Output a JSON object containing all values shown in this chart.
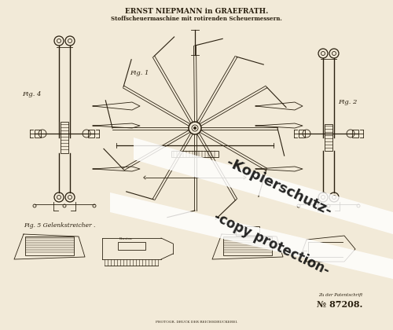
{
  "bg_color": "#f2ead8",
  "line_color": "#2a2010",
  "title1": "ERNST NIEPMANN in GRAEFRATH.",
  "title2": "Stoffscheuermaschine mit rotirenden Scheuermessern.",
  "patent_label": "Zu der Patentschrift",
  "patent_number": "№ 87208.",
  "watermark1": "-Kopierschutz-",
  "watermark2": "-copy protection-",
  "fig1_label": "Fig. 1",
  "fig2_label": "Fig. 2",
  "fig4_label": "Fig. 4",
  "fig5_label": "Fig. 5 Gelenkstreicher .",
  "bottom_text": "PHOTOGR. DRUCK DER REICHSDRUCKEREI.",
  "lw": 0.6,
  "fig_size": [
    5.0,
    4.2
  ],
  "dpi": 100
}
